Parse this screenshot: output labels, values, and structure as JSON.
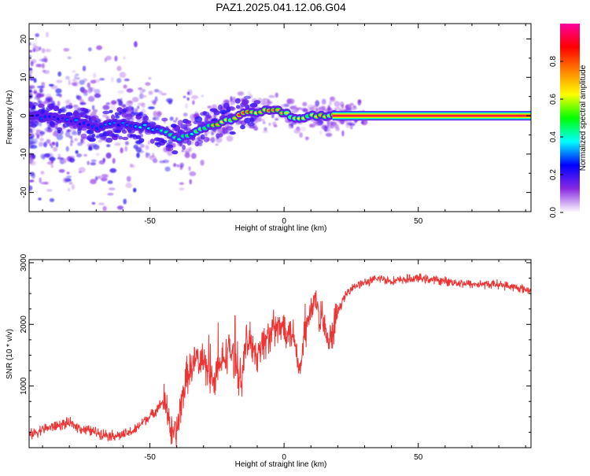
{
  "title": "PAZ1.2025.041.12.06.G04",
  "chart_data": [
    {
      "type": "heatmap",
      "xlabel": "Height of straight line (km)",
      "ylabel": "Frequency (Hz)",
      "xlim": [
        -95,
        92
      ],
      "ylim": [
        -25,
        24
      ],
      "xticks": [
        -50,
        0,
        50
      ],
      "xtick_labels": [
        "-50",
        "0",
        "50"
      ],
      "yticks": [
        -20,
        -10,
        0,
        10,
        20
      ],
      "ytick_labels": [
        "-20",
        "-10",
        "0",
        "10",
        "20"
      ],
      "colorbar": {
        "label": "Normalized spectral amplitude",
        "range": [
          0,
          1
        ],
        "ticks": [
          0.0,
          0.2,
          0.4,
          0.6,
          0.8
        ],
        "tick_labels": [
          "0.0",
          "0.2",
          "0.4",
          "0.6",
          "0.8"
        ],
        "colors": [
          "#ffffff",
          "#8a2be2",
          "#0000ff",
          "#00ffff",
          "#00ff00",
          "#ffff00",
          "#ff8000",
          "#ff0000",
          "#ff00a0"
        ]
      },
      "ridge_x": [
        -95,
        -80,
        -70,
        -60,
        -50,
        -45,
        -40,
        -35,
        -30,
        -25,
        -20,
        -15,
        -10,
        -5,
        0,
        5,
        10,
        15,
        20,
        30,
        50,
        92
      ],
      "ridge_frequency": [
        0,
        -1,
        -3,
        -2,
        -3,
        -4,
        -6,
        -5,
        -3,
        -2,
        -1,
        1,
        1,
        1.5,
        1,
        -1,
        0,
        0,
        0,
        0,
        0,
        0
      ],
      "ridge_amplitude": [
        0.3,
        0.3,
        0.3,
        0.35,
        0.4,
        0.45,
        0.45,
        0.5,
        0.55,
        0.7,
        0.75,
        0.85,
        0.85,
        0.8,
        0.7,
        0.6,
        0.6,
        0.7,
        0.85,
        0.9,
        0.9,
        0.9
      ]
    },
    {
      "type": "line",
      "xlabel": "Height of straight line (km)",
      "ylabel": "SNR (10 * v/v)",
      "xlim": [
        -95,
        92
      ],
      "ylim": [
        0,
        3050
      ],
      "xticks": [
        -50,
        0,
        50
      ],
      "xtick_labels": [
        "-50",
        "0",
        "50"
      ],
      "yticks": [
        1000,
        2000,
        3000
      ],
      "ytick_labels": [
        "1000",
        "2000",
        "3000"
      ],
      "color": "#ee3333",
      "series": [
        {
          "x": [
            -95,
            -90,
            -85,
            -80,
            -75,
            -70,
            -65,
            -60,
            -55,
            -52,
            -50,
            -47,
            -45,
            -43,
            -42,
            -40,
            -38,
            -36,
            -34,
            -32,
            -30,
            -28,
            -26,
            -24,
            -22,
            -20,
            -18,
            -16,
            -14,
            -12,
            -10,
            -8,
            -6,
            -4,
            -2,
            0,
            2,
            4,
            6,
            8,
            10,
            12,
            14,
            16,
            18,
            20,
            22,
            25,
            28,
            32,
            36,
            40,
            50,
            60,
            70,
            80,
            92
          ],
          "y": [
            200,
            300,
            350,
            400,
            300,
            250,
            200,
            200,
            300,
            450,
            500,
            650,
            750,
            550,
            200,
            250,
            800,
            1200,
            1300,
            1500,
            1400,
            1200,
            1100,
            1300,
            1500,
            1600,
            1300,
            1100,
            1700,
            1700,
            1500,
            1700,
            1800,
            1900,
            1900,
            2000,
            1900,
            1800,
            1200,
            1900,
            2200,
            2400,
            2100,
            1700,
            1800,
            2200,
            2400,
            2600,
            2650,
            2700,
            2750,
            2700,
            2750,
            2700,
            2650,
            2650,
            2550
          ]
        }
      ]
    }
  ]
}
